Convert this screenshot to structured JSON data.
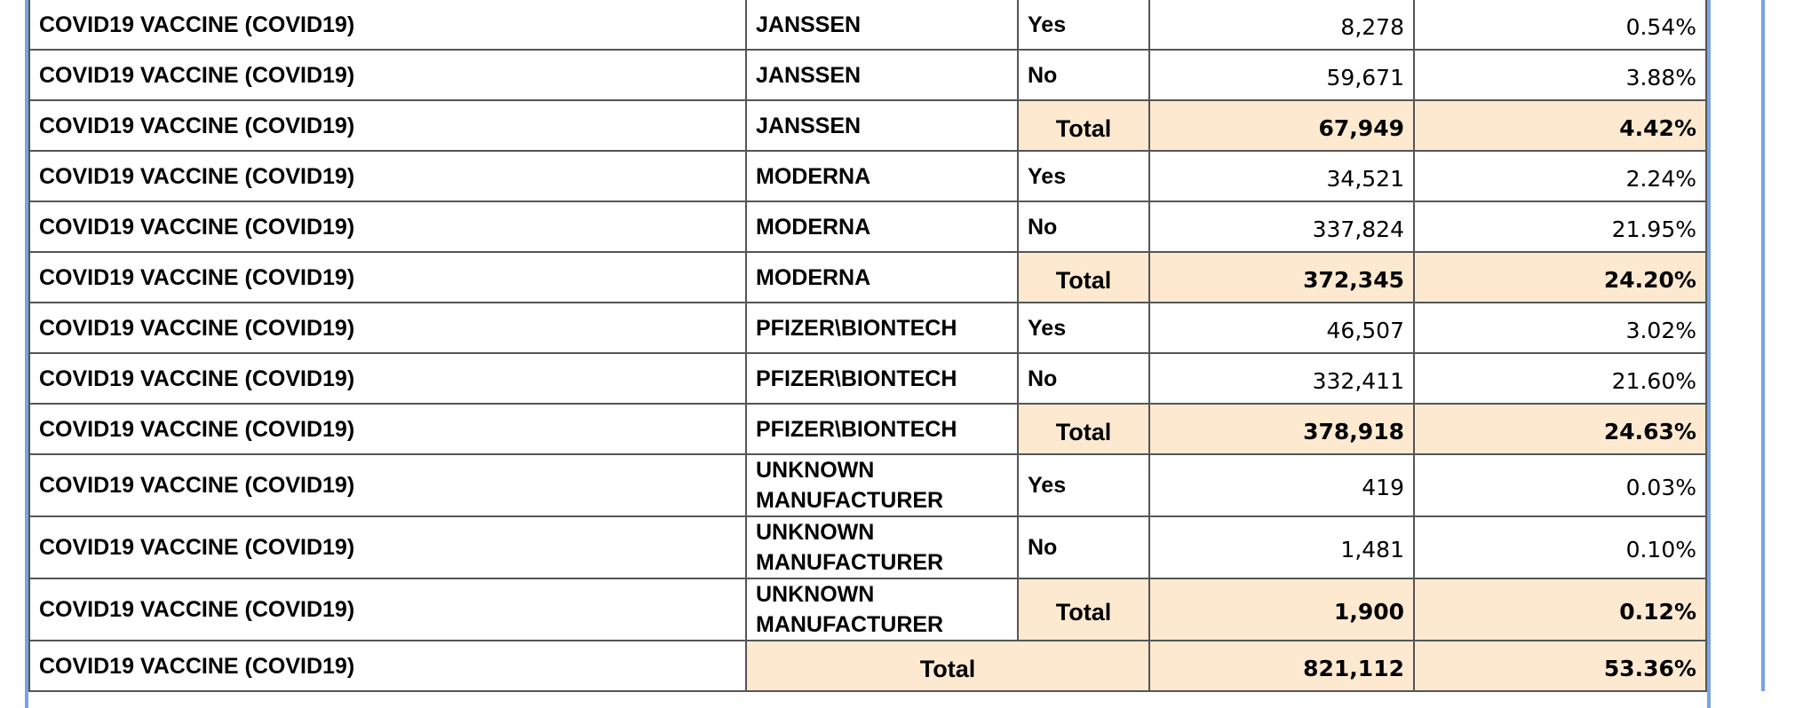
{
  "table": {
    "groups": [
      {
        "rows": [
          {
            "vaccine": "COVID19 VACCINE (COVID19)",
            "manufacturer": "JANSSEN",
            "dose": "Yes",
            "count": "8,278",
            "percent": "0.54%"
          },
          {
            "vaccine": "COVID19 VACCINE (COVID19)",
            "manufacturer": "JANSSEN",
            "dose": "No",
            "count": "59,671",
            "percent": "3.88%"
          }
        ],
        "total": {
          "vaccine": "COVID19 VACCINE (COVID19)",
          "manufacturer": "JANSSEN",
          "label": "Total",
          "count": "67,949",
          "percent": "4.42%"
        }
      },
      {
        "rows": [
          {
            "vaccine": "COVID19 VACCINE (COVID19)",
            "manufacturer": "MODERNA",
            "dose": "Yes",
            "count": "34,521",
            "percent": "2.24%"
          },
          {
            "vaccine": "COVID19 VACCINE (COVID19)",
            "manufacturer": "MODERNA",
            "dose": "No",
            "count": "337,824",
            "percent": "21.95%"
          }
        ],
        "total": {
          "vaccine": "COVID19 VACCINE (COVID19)",
          "manufacturer": "MODERNA",
          "label": "Total",
          "count": "372,345",
          "percent": "24.20%"
        }
      },
      {
        "rows": [
          {
            "vaccine": "COVID19 VACCINE (COVID19)",
            "manufacturer": "PFIZER\\BIONTECH",
            "dose": "Yes",
            "count": "46,507",
            "percent": "3.02%"
          },
          {
            "vaccine": "COVID19 VACCINE (COVID19)",
            "manufacturer": "PFIZER\\BIONTECH",
            "dose": "No",
            "count": "332,411",
            "percent": "21.60%"
          }
        ],
        "total": {
          "vaccine": "COVID19 VACCINE (COVID19)",
          "manufacturer": "PFIZER\\BIONTECH",
          "label": "Total",
          "count": "378,918",
          "percent": "24.63%"
        }
      },
      {
        "rows": [
          {
            "vaccine": "COVID19 VACCINE (COVID19)",
            "manufacturer": "UNKNOWN MANUFACTURER",
            "dose": "Yes",
            "count": "419",
            "percent": "0.03%"
          },
          {
            "vaccine": "COVID19 VACCINE (COVID19)",
            "manufacturer": "UNKNOWN MANUFACTURER",
            "dose": "No",
            "count": "1,481",
            "percent": "0.10%"
          }
        ],
        "total": {
          "vaccine": "COVID19 VACCINE (COVID19)",
          "manufacturer": "UNKNOWN MANUFACTURER",
          "label": "Total",
          "count": "1,900",
          "percent": "0.12%"
        }
      }
    ],
    "grand_total": {
      "vaccine": "COVID19 VACCINE (COVID19)",
      "label": "Total",
      "count": "821,112",
      "percent": "53.36%"
    }
  }
}
